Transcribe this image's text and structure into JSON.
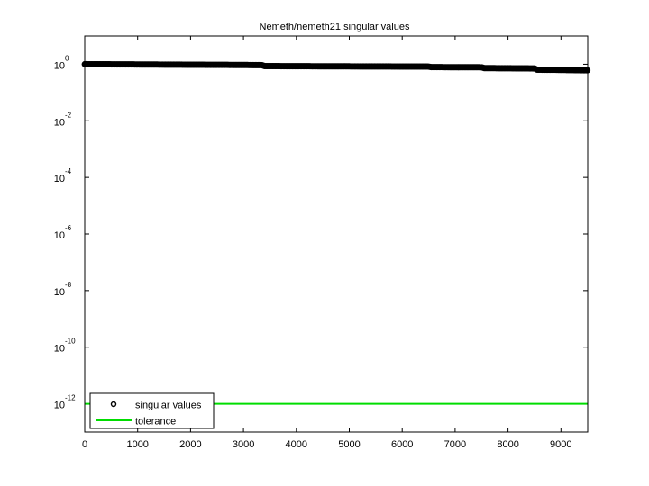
{
  "chart_data": {
    "type": "scatter",
    "title": "Nemeth/nemeth21 singular values",
    "xlabel": "",
    "ylabel": "",
    "xlim": [
      0,
      9506
    ],
    "ylim_exponent": [
      -13,
      1
    ],
    "yscale": "log",
    "grid": false,
    "legend_position": "bottom-left",
    "x_ticks": [
      "0",
      "1000",
      "2000",
      "3000",
      "4000",
      "5000",
      "6000",
      "7000",
      "8000",
      "9000"
    ],
    "y_ticks": [
      {
        "base": "10",
        "exp": "0"
      },
      {
        "base": "10",
        "exp": "-2"
      },
      {
        "base": "10",
        "exp": "-4"
      },
      {
        "base": "10",
        "exp": "-6"
      },
      {
        "base": "10",
        "exp": "-8"
      },
      {
        "base": "10",
        "exp": "-10"
      },
      {
        "base": "10",
        "exp": "-12"
      }
    ],
    "series": [
      {
        "name": "singular values",
        "marker": "circle",
        "color": "#000000",
        "x": [
          1,
          500,
          1000,
          1500,
          2000,
          2500,
          3000,
          3350,
          3400,
          4000,
          4500,
          5000,
          5500,
          6000,
          6500,
          6550,
          7000,
          7500,
          7550,
          8000,
          8500,
          8550,
          9000,
          9500
        ],
        "y": [
          1.0,
          0.99,
          0.98,
          0.97,
          0.96,
          0.95,
          0.94,
          0.93,
          0.86,
          0.85,
          0.845,
          0.84,
          0.835,
          0.83,
          0.825,
          0.79,
          0.785,
          0.78,
          0.73,
          0.72,
          0.71,
          0.64,
          0.63,
          0.61
        ]
      },
      {
        "name": "tolerance",
        "type": "line",
        "color": "#00dd00",
        "x": [
          0,
          9506
        ],
        "y": [
          1e-12,
          1e-12
        ]
      }
    ]
  }
}
